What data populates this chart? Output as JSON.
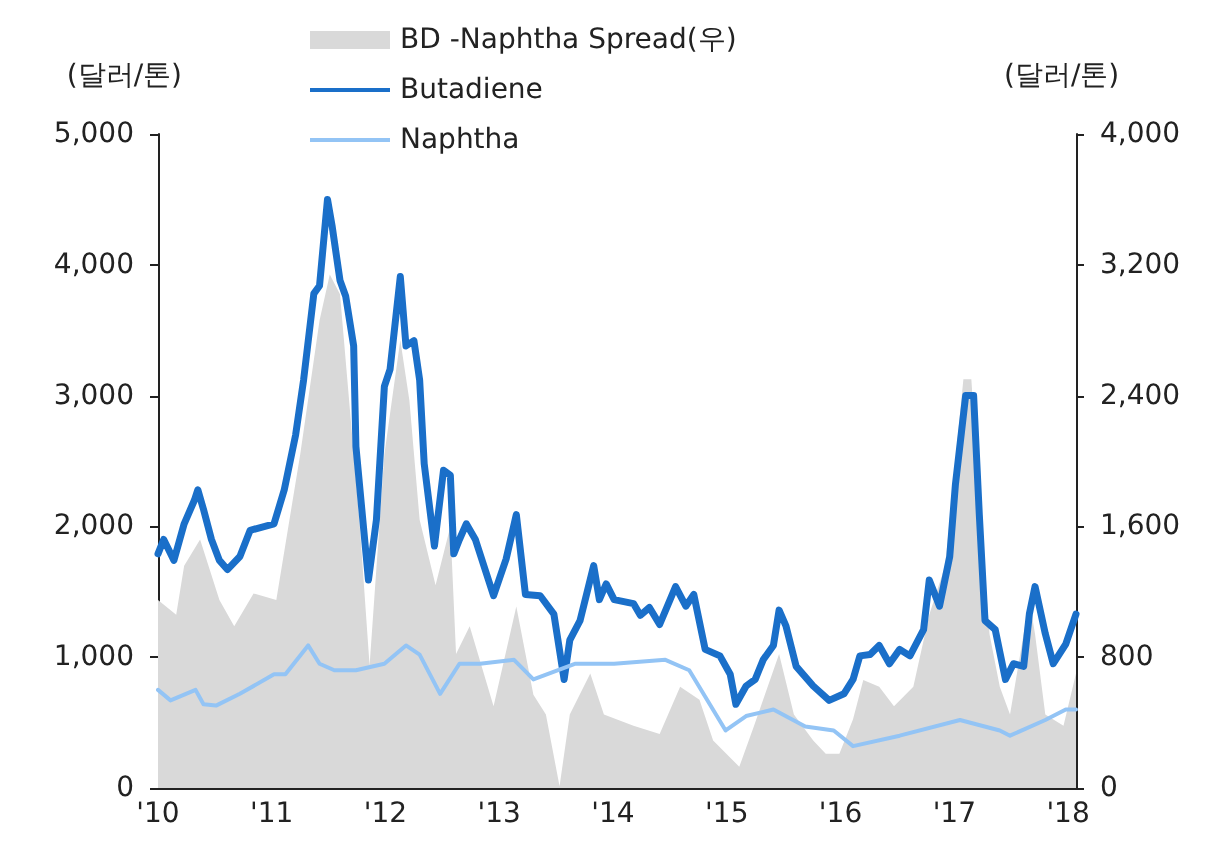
{
  "chart_data": {
    "type": "line",
    "ylabel": "(달러/톤)",
    "y2label": "(달러/톤)",
    "xlim": [
      2010,
      2018.07
    ],
    "xticks": [
      {
        "value": 2010,
        "label": "'10"
      },
      {
        "value": 2011,
        "label": "'11"
      },
      {
        "value": 2012,
        "label": "'12"
      },
      {
        "value": 2013,
        "label": "'13"
      },
      {
        "value": 2014,
        "label": "'14"
      },
      {
        "value": 2015,
        "label": "'15"
      },
      {
        "value": 2016,
        "label": "'16"
      },
      {
        "value": 2017,
        "label": "'17"
      },
      {
        "value": 2018,
        "label": "'18"
      }
    ],
    "ylim": [
      0,
      5000
    ],
    "yticks": [
      0,
      {
        "value": 1000,
        "label": "1,000"
      },
      {
        "value": 2000,
        "label": "2,000"
      },
      {
        "value": 3000,
        "label": "3,000"
      },
      {
        "value": 4000,
        "label": "4,000"
      },
      {
        "value": 5000,
        "label": "5,000"
      }
    ],
    "y2lim": [
      0,
      4000
    ],
    "y2ticks": [
      0,
      800,
      {
        "value": 1600,
        "label": "1,600"
      },
      {
        "value": 2400,
        "label": "2,400"
      },
      {
        "value": 3200,
        "label": "3,200"
      },
      {
        "value": 4000,
        "label": "4,000"
      }
    ],
    "grid": false,
    "legend": "top",
    "series": [
      {
        "name": "BD -Naphtha Spread(우)",
        "type": "area",
        "axis": "y2",
        "color": "#d9d9d9",
        "x": [
          2010.0,
          2010.16,
          2010.23,
          2010.37,
          2010.54,
          2010.67,
          2010.84,
          2011.04,
          2011.25,
          2011.42,
          2011.51,
          2011.6,
          2011.77,
          2011.86,
          2011.99,
          2012.13,
          2012.21,
          2012.3,
          2012.44,
          2012.57,
          2012.62,
          2012.74,
          2012.95,
          2013.15,
          2013.3,
          2013.41,
          2013.53,
          2013.62,
          2013.8,
          2013.92,
          2014.18,
          2014.41,
          2014.59,
          2014.76,
          2014.88,
          2015.11,
          2015.24,
          2015.46,
          2015.59,
          2015.76,
          2015.87,
          2015.99,
          2016.11,
          2016.2,
          2016.34,
          2016.47,
          2016.64,
          2016.78,
          2016.92,
          2017.08,
          2017.15,
          2017.22,
          2017.31,
          2017.4,
          2017.49,
          2017.66,
          2017.71,
          2017.8,
          2017.96,
          2018.07
        ],
        "values": [
          1150,
          1060,
          1360,
          1520,
          1150,
          990,
          1190,
          1150,
          2040,
          2860,
          3140,
          3020,
          1640,
          750,
          2040,
          2740,
          2370,
          1640,
          1240,
          1600,
          820,
          990,
          500,
          1110,
          570,
          450,
          10,
          450,
          700,
          450,
          380,
          330,
          620,
          540,
          290,
          130,
          380,
          820,
          450,
          290,
          210,
          210,
          420,
          660,
          620,
          500,
          620,
          1060,
          1360,
          2500,
          2500,
          1760,
          940,
          620,
          450,
          1150,
          940,
          450,
          380,
          700
        ]
      },
      {
        "name": "Butadiene",
        "color": "#1a6fc9",
        "x": [
          2010.0,
          2010.05,
          2010.14,
          2010.23,
          2010.32,
          2010.35,
          2010.4,
          2010.47,
          2010.54,
          2010.61,
          2010.72,
          2010.81,
          2011.02,
          2011.11,
          2011.21,
          2011.28,
          2011.37,
          2011.42,
          2011.49,
          2011.53,
          2011.6,
          2011.65,
          2011.72,
          2011.74,
          2011.85,
          2011.92,
          2011.99,
          2012.04,
          2012.13,
          2012.18,
          2012.25,
          2012.3,
          2012.34,
          2012.43,
          2012.51,
          2012.57,
          2012.6,
          2012.65,
          2012.71,
          2012.79,
          2012.95,
          2013.06,
          2013.15,
          2013.23,
          2013.36,
          2013.48,
          2013.57,
          2013.62,
          2013.71,
          2013.83,
          2013.88,
          2013.94,
          2014.01,
          2014.18,
          2014.24,
          2014.32,
          2014.41,
          2014.55,
          2014.64,
          2014.71,
          2014.81,
          2014.94,
          2015.03,
          2015.08,
          2015.17,
          2015.25,
          2015.32,
          2015.41,
          2015.46,
          2015.52,
          2015.61,
          2015.76,
          2015.9,
          2016.03,
          2016.11,
          2016.17,
          2016.26,
          2016.34,
          2016.43,
          2016.52,
          2016.61,
          2016.73,
          2016.78,
          2016.87,
          2016.96,
          2017.01,
          2017.1,
          2017.17,
          2017.22,
          2017.27,
          2017.36,
          2017.45,
          2017.52,
          2017.61,
          2017.66,
          2017.71,
          2017.8,
          2017.87,
          2017.98,
          2018.07
        ],
        "values": [
          1790,
          1900,
          1740,
          2020,
          2200,
          2280,
          2130,
          1900,
          1740,
          1670,
          1770,
          1970,
          2020,
          2280,
          2700,
          3120,
          3780,
          3840,
          4500,
          4300,
          3880,
          3760,
          3380,
          2610,
          1590,
          2050,
          3070,
          3200,
          3910,
          3380,
          3420,
          3120,
          2480,
          1850,
          2430,
          2390,
          1790,
          1900,
          2020,
          1900,
          1470,
          1750,
          2090,
          1480,
          1470,
          1330,
          830,
          1130,
          1280,
          1700,
          1440,
          1560,
          1440,
          1410,
          1320,
          1380,
          1250,
          1540,
          1390,
          1480,
          1060,
          1010,
          870,
          640,
          780,
          830,
          980,
          1090,
          1360,
          1240,
          930,
          780,
          670,
          720,
          830,
          1010,
          1020,
          1090,
          950,
          1060,
          1010,
          1210,
          1590,
          1390,
          1770,
          2320,
          3000,
          3000,
          2090,
          1280,
          1210,
          830,
          950,
          930,
          1330,
          1540,
          1180,
          950,
          1100,
          1330
        ]
      },
      {
        "name": "Naphtha",
        "color": "#93c4f5",
        "x": [
          2010.0,
          2010.11,
          2010.33,
          2010.4,
          2010.51,
          2010.72,
          2011.02,
          2011.12,
          2011.32,
          2011.42,
          2011.55,
          2011.74,
          2011.99,
          2012.18,
          2012.3,
          2012.48,
          2012.65,
          2012.83,
          2013.13,
          2013.3,
          2013.67,
          2014.01,
          2014.46,
          2014.67,
          2014.99,
          2015.17,
          2015.41,
          2015.69,
          2015.94,
          2016.11,
          2016.52,
          2017.05,
          2017.4,
          2017.49,
          2017.8,
          2017.98,
          2018.07
        ],
        "values": [
          750,
          670,
          750,
          640,
          630,
          720,
          870,
          870,
          1090,
          950,
          900,
          900,
          950,
          1090,
          1020,
          720,
          950,
          950,
          980,
          830,
          950,
          950,
          980,
          900,
          440,
          550,
          600,
          470,
          440,
          320,
          400,
          520,
          440,
          400,
          520,
          600,
          600
        ]
      }
    ]
  }
}
